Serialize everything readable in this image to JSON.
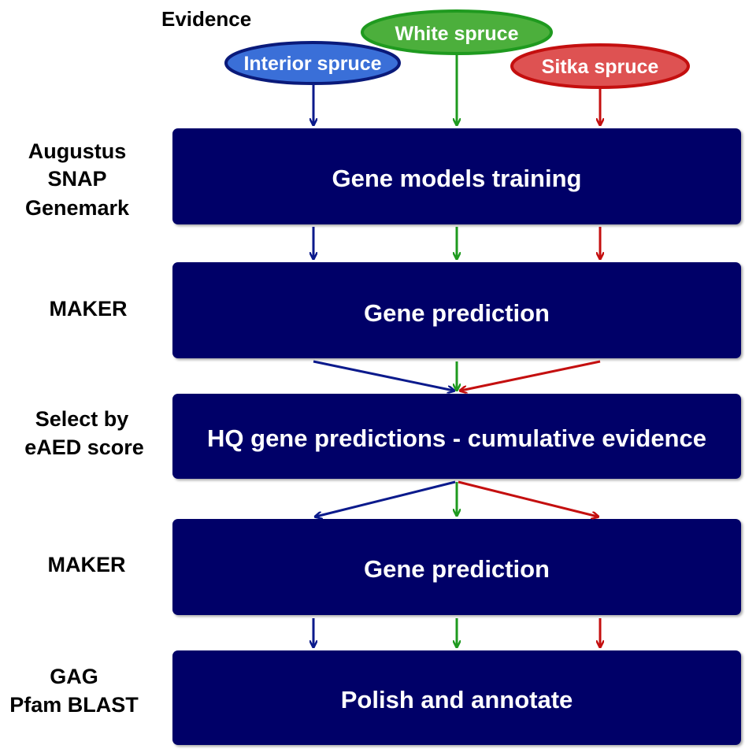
{
  "evidence_label": "Evidence",
  "sources": [
    {
      "name": "Interior spruce",
      "fill": "#3a6fd8",
      "stroke": "#0a1a7a",
      "arrow": "#0b1a8c"
    },
    {
      "name": "White spruce",
      "fill": "#4caf3c",
      "stroke": "#1f9a1f",
      "arrow": "#1f9a1f"
    },
    {
      "name": "Sitka spruce",
      "fill": "#de5252",
      "stroke": "#c40f0f",
      "arrow": "#c40f0f"
    }
  ],
  "box_color": "#050568",
  "steps": [
    {
      "tool_lines": [
        "Augustus",
        "SNAP",
        "Genemark"
      ],
      "box_label": "Gene models training"
    },
    {
      "tool_lines": [
        "MAKER"
      ],
      "box_label": "Gene prediction"
    },
    {
      "tool_lines": [
        "Select by",
        "eAED score"
      ],
      "box_label": "HQ gene predictions - cumulative evidence"
    },
    {
      "tool_lines": [
        "MAKER"
      ],
      "box_label": "Gene prediction"
    },
    {
      "tool_lines": [
        "GAG",
        "Pfam BLAST"
      ],
      "box_label": "Polish and annotate"
    }
  ]
}
